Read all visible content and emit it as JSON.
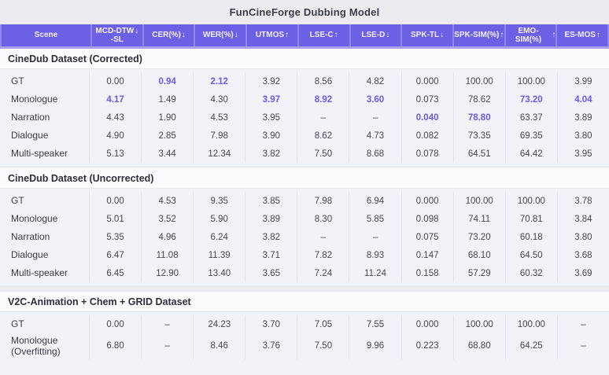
{
  "title": "FunCineForge Dubbing Model",
  "colors": {
    "header_bg": "#6c60e4",
    "header_text": "#f3f1ff",
    "highlight": "#6a5ae2",
    "section_bg": "#fbfbfe",
    "rows_bg": "#f2f3f9",
    "page_bg": "#ebebf0"
  },
  "columns": [
    {
      "label": "Scene",
      "label2": "",
      "arrow": ""
    },
    {
      "label": "MCD-DTW",
      "label2": "-SL",
      "arrow": "down"
    },
    {
      "label": "CER(%)",
      "label2": "",
      "arrow": "down"
    },
    {
      "label": "WER(%)",
      "label2": "",
      "arrow": "down"
    },
    {
      "label": "UTMOS",
      "label2": "",
      "arrow": "up"
    },
    {
      "label": "LSE-C",
      "label2": "",
      "arrow": "up"
    },
    {
      "label": "LSE-D",
      "label2": "",
      "arrow": "down"
    },
    {
      "label": "SPK-TL",
      "label2": "",
      "arrow": "down"
    },
    {
      "label": "SPK-SIM(%)",
      "label2": "",
      "arrow": "up"
    },
    {
      "label": "EMO-SIM(%)",
      "label2": "",
      "arrow": "up"
    },
    {
      "label": "ES-MOS",
      "label2": "",
      "arrow": "up"
    }
  ],
  "sections": [
    {
      "title": "CineDub Dataset (Corrected)",
      "rows": [
        {
          "scene": "GT",
          "values": [
            "0.00",
            "0.94",
            "2.12",
            "3.92",
            "8.56",
            "4.82",
            "0.000",
            "100.00",
            "100.00",
            "3.99"
          ],
          "highlights": [
            1,
            2
          ]
        },
        {
          "scene": "Monologue",
          "values": [
            "4.17",
            "1.49",
            "4.30",
            "3.97",
            "8.92",
            "3.60",
            "0.073",
            "78.62",
            "73.20",
            "4.04"
          ],
          "highlights": [
            0,
            3,
            4,
            5,
            8,
            9
          ]
        },
        {
          "scene": "Narration",
          "values": [
            "4.43",
            "1.90",
            "4.53",
            "3.95",
            "–",
            "–",
            "0.040",
            "78.80",
            "63.37",
            "3.89"
          ],
          "highlights": [
            6,
            7
          ]
        },
        {
          "scene": "Dialogue",
          "values": [
            "4.90",
            "2.85",
            "7.98",
            "3.90",
            "8.62",
            "4.73",
            "0.082",
            "73.35",
            "69.35",
            "3.80"
          ],
          "highlights": []
        },
        {
          "scene": "Multi-speaker",
          "values": [
            "5.13",
            "3.44",
            "12.34",
            "3.82",
            "7.50",
            "8.68",
            "0.078",
            "64.51",
            "64.42",
            "3.95"
          ],
          "highlights": []
        }
      ]
    },
    {
      "title": "CineDub Dataset (Uncorrected)",
      "rows": [
        {
          "scene": "GT",
          "values": [
            "0.00",
            "4.53",
            "9.35",
            "3.85",
            "7.98",
            "6.94",
            "0.000",
            "100.00",
            "100.00",
            "3.78"
          ],
          "highlights": []
        },
        {
          "scene": "Monologue",
          "values": [
            "5.01",
            "3.52",
            "5.90",
            "3.89",
            "8.30",
            "5.85",
            "0.098",
            "74.11",
            "70.81",
            "3.84"
          ],
          "highlights": []
        },
        {
          "scene": "Narration",
          "values": [
            "5.35",
            "4.96",
            "6.24",
            "3.82",
            "–",
            "–",
            "0.075",
            "73.20",
            "60.18",
            "3.80"
          ],
          "highlights": []
        },
        {
          "scene": "Dialogue",
          "values": [
            "6.47",
            "11.08",
            "11.39",
            "3.71",
            "7.82",
            "8.93",
            "0.147",
            "68.10",
            "64.50",
            "3.68"
          ],
          "highlights": []
        },
        {
          "scene": "Multi-speaker",
          "values": [
            "6.45",
            "12.90",
            "13.40",
            "3.65",
            "7.24",
            "11.24",
            "0.158",
            "57.29",
            "60.32",
            "3.69"
          ],
          "highlights": []
        }
      ]
    },
    {
      "title": "V2C-Animation + Chem + GRID Dataset",
      "rows": [
        {
          "scene": "GT",
          "values": [
            "0.00",
            "–",
            "24.23",
            "3.70",
            "7.05",
            "7.55",
            "0.000",
            "100.00",
            "100.00",
            "–"
          ],
          "highlights": []
        },
        {
          "scene": "Monologue (Overfitting)",
          "values": [
            "6.80",
            "–",
            "8.46",
            "3.76",
            "7.50",
            "9.96",
            "0.223",
            "68.80",
            "64.25",
            "–"
          ],
          "highlights": []
        }
      ]
    }
  ]
}
